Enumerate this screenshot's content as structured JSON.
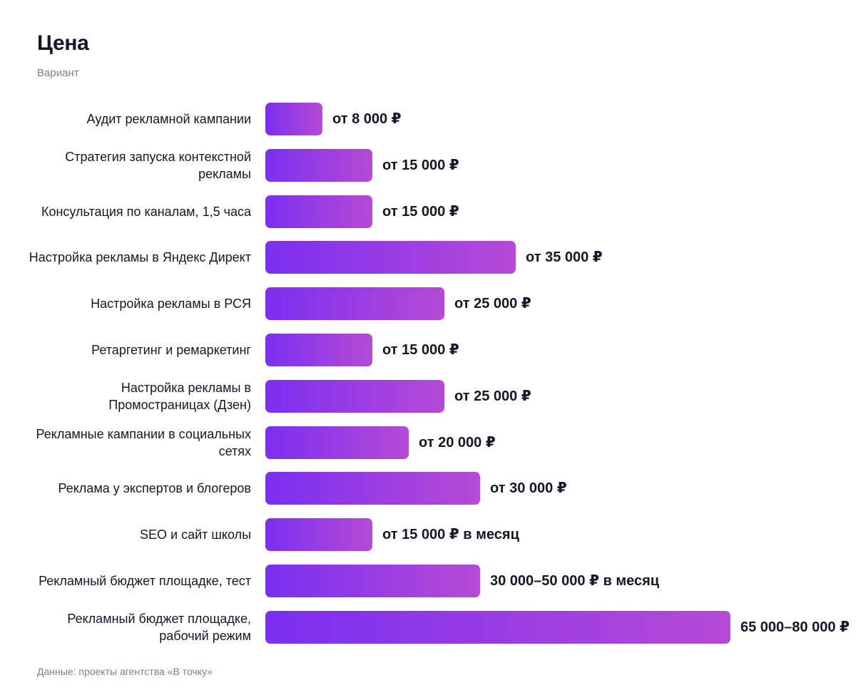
{
  "chart_data": {
    "type": "bar",
    "orientation": "horizontal",
    "title": "Цена",
    "subtitle": "Вариант",
    "source": "Данные: проекты агентства «В точку»",
    "colors": {
      "bar_start": "#7b2ff0",
      "bar_end": "#b64ad6",
      "text": "#16162a",
      "muted": "#7a7f8c"
    },
    "categories": [
      "Аудит рекламной кампании",
      "Стратегия запуска контекстной рекламы",
      "Консультация по каналам, 1,5 часа",
      "Настройка рекламы в Яндекс Директ",
      "Настройка рекламы в РСЯ",
      "Ретаргетинг и ремаркетинг",
      "Настройка рекламы в Промостраницах (Дзен)",
      "Рекламные кампании в социальных сетях",
      "Реклама у экспертов и блогеров",
      "SEO и сайт школы",
      "Рекламный бюджет площадке, тест",
      "Рекламный бюджет площадке, рабочий режим"
    ],
    "values": [
      8000,
      15000,
      15000,
      35000,
      25000,
      15000,
      25000,
      20000,
      30000,
      15000,
      30000,
      65000
    ],
    "value_labels": [
      "от 8 000 ₽",
      "от 15 000 ₽",
      "от 15 000 ₽",
      "от 35 000 ₽",
      "от 25 000 ₽",
      "от 15 000 ₽",
      "от 25 000 ₽",
      "от 20 000 ₽",
      "от 30 000 ₽",
      "от 15 000 ₽ в месяц",
      "30 000–50 000 ₽ в месяц",
      "65 000–80 000 ₽"
    ],
    "xlim": [
      0,
      65000
    ],
    "grid": false,
    "legend": "none"
  }
}
